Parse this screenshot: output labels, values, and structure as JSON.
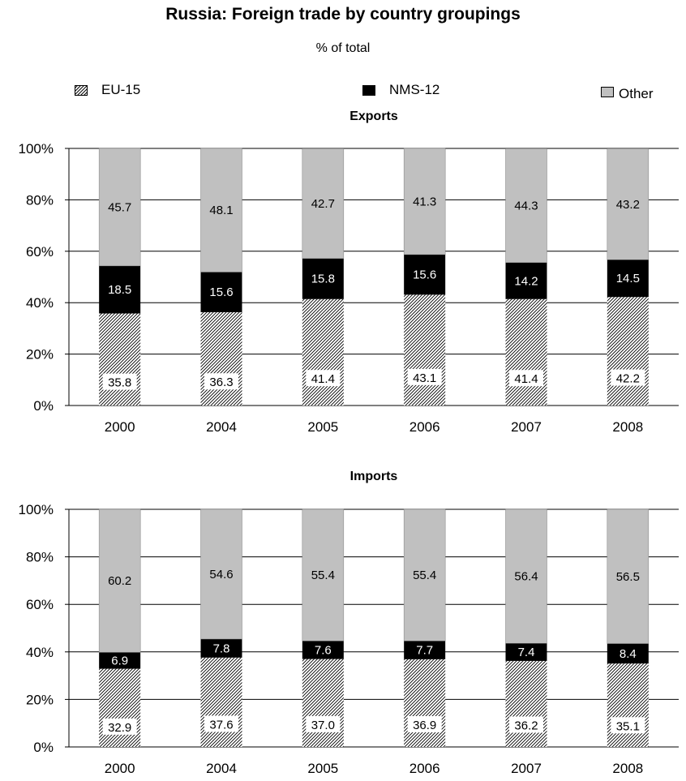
{
  "title": "Russia: Foreign trade by country groupings",
  "subtitle": "% of total",
  "legend": [
    {
      "name": "EU-15",
      "pattern": "hatch"
    },
    {
      "name": "NMS-12",
      "color": "#000000"
    },
    {
      "name": "Other",
      "color": "#c0c0c0"
    }
  ],
  "chart_data": [
    {
      "type": "bar",
      "stacked": true,
      "title": "Exports",
      "categories": [
        "2000",
        "2004",
        "2005",
        "2006",
        "2007",
        "2008"
      ],
      "series": [
        {
          "name": "EU-15",
          "values": [
            35.8,
            36.3,
            41.4,
            43.1,
            41.4,
            42.2
          ],
          "labels": [
            "35.8",
            "36.3",
            "41.4",
            "43.1",
            "41.4",
            "42.2"
          ]
        },
        {
          "name": "NMS-12",
          "values": [
            18.5,
            15.6,
            15.8,
            15.6,
            14.2,
            14.5
          ],
          "labels": [
            "18.5",
            "15.6",
            "15.8",
            "15.6",
            "14.2",
            "14.5"
          ]
        },
        {
          "name": "Other",
          "values": [
            45.7,
            48.1,
            42.7,
            41.3,
            44.3,
            43.2
          ],
          "labels": [
            "45.7",
            "48.1",
            "42.7",
            "41.3",
            "44.3",
            "43.2"
          ]
        }
      ],
      "ylim": [
        0,
        100
      ],
      "yticks": [
        "0%",
        "20%",
        "40%",
        "60%",
        "80%",
        "100%"
      ],
      "grid": true,
      "legend_position": "top"
    },
    {
      "type": "bar",
      "stacked": true,
      "title": "Imports",
      "categories": [
        "2000",
        "2004",
        "2005",
        "2006",
        "2007",
        "2008"
      ],
      "series": [
        {
          "name": "EU-15",
          "values": [
            32.9,
            37.6,
            37.0,
            36.9,
            36.2,
            35.1
          ],
          "labels": [
            "32.9",
            "37.6",
            "37.0",
            "36.9",
            "36.2",
            "35.1"
          ]
        },
        {
          "name": "NMS-12",
          "values": [
            6.9,
            7.8,
            7.6,
            7.7,
            7.4,
            8.4
          ],
          "labels": [
            "6.9",
            "7.8",
            "7.6",
            "7.7",
            "7.4",
            "8.4"
          ]
        },
        {
          "name": "Other",
          "values": [
            60.2,
            54.6,
            55.4,
            55.4,
            56.4,
            56.5
          ],
          "labels": [
            "60.2",
            "54.6",
            "55.4",
            "55.4",
            "56.4",
            "56.5"
          ]
        }
      ],
      "ylim": [
        0,
        100
      ],
      "yticks": [
        "0%",
        "20%",
        "40%",
        "60%",
        "80%",
        "100%"
      ],
      "grid": true,
      "legend_position": "top"
    }
  ]
}
